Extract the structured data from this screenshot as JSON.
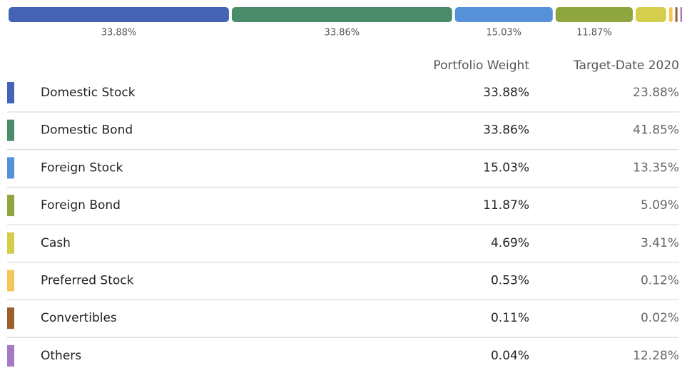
{
  "chart_data": {
    "type": "stacked-bar",
    "categories": [
      "Domestic Stock",
      "Domestic Bond",
      "Foreign Stock",
      "Foreign Bond",
      "Cash",
      "Preferred Stock",
      "Convertibles",
      "Others"
    ],
    "colors": [
      "#4463b5",
      "#4a8c6a",
      "#5590d8",
      "#8fa63e",
      "#d5cd4c",
      "#f5c55a",
      "#9b5e2d",
      "#a57ac4"
    ],
    "series": [
      {
        "name": "Portfolio Weight",
        "values": [
          33.88,
          33.86,
          15.03,
          11.87,
          4.69,
          0.53,
          0.11,
          0.04
        ],
        "value_labels": [
          "33.88%",
          "33.86%",
          "15.03%",
          "11.87%",
          "4.69%",
          "0.53%",
          "0.11%",
          "0.04%"
        ]
      },
      {
        "name": "Target-Date 2020",
        "values": [
          23.88,
          41.85,
          13.35,
          5.09,
          3.41,
          0.12,
          0.02,
          12.28
        ],
        "value_labels": [
          "23.88%",
          "41.85%",
          "13.35%",
          "5.09%",
          "3.41%",
          "0.12%",
          "0.02%",
          "12.28%"
        ]
      }
    ]
  }
}
